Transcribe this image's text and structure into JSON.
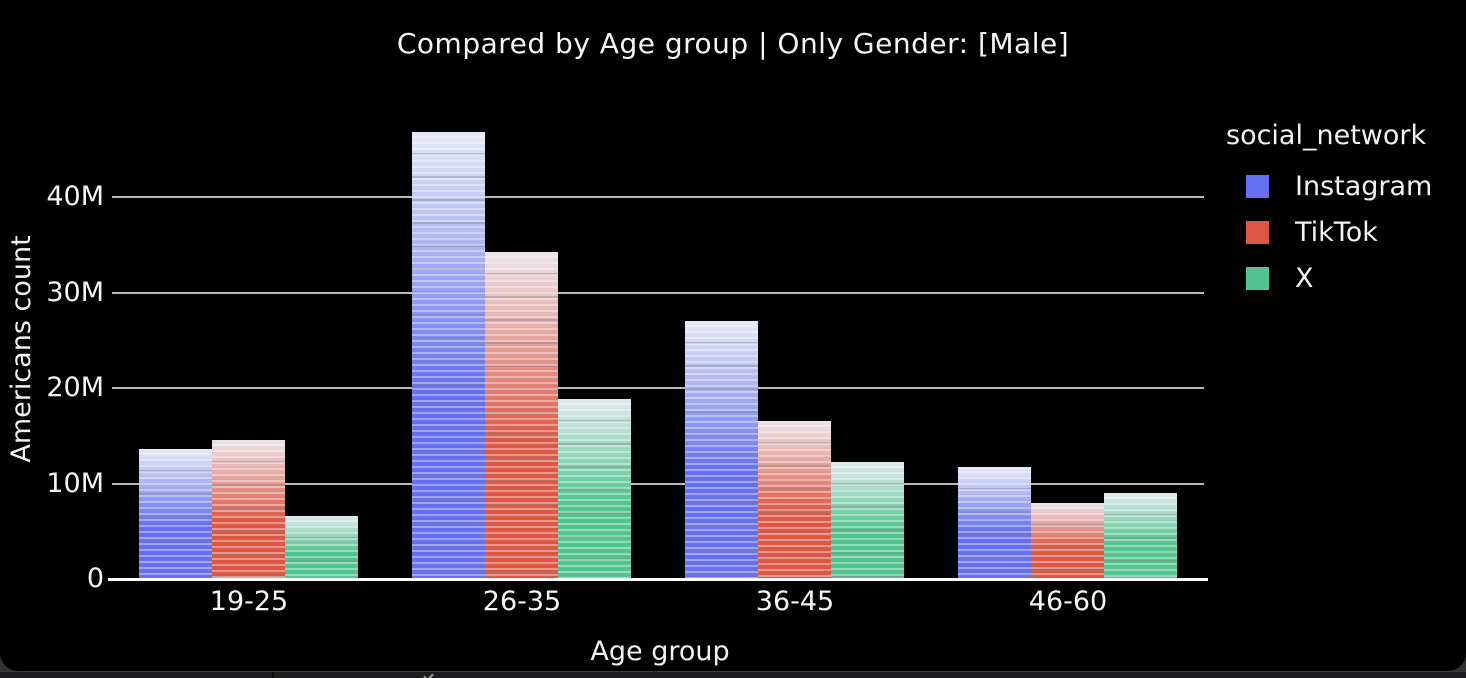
{
  "chart_data": {
    "type": "bar",
    "title": "Compared by Age group | Only Gender: [Male]",
    "xlabel": "Age group",
    "ylabel": "Americans count",
    "legend_title": "social_network",
    "legend_position": "right",
    "grid": true,
    "unit": "M",
    "categories": [
      "19-25",
      "26-35",
      "36-45",
      "46-60"
    ],
    "series": [
      {
        "name": "Instagram",
        "color": "#6470f0",
        "light_color": "#e6e9f5",
        "values": [
          13.6,
          46.8,
          27.0,
          11.7
        ]
      },
      {
        "name": "TikTok",
        "color": "#dc5844",
        "light_color": "#ece4ea",
        "values": [
          14.6,
          34.2,
          16.5,
          8.0
        ]
      },
      {
        "name": "X",
        "color": "#52c491",
        "light_color": "#e0eaee",
        "values": [
          6.6,
          18.9,
          12.2,
          9.0
        ]
      }
    ],
    "ylim": [
      0,
      48
    ],
    "yticks": [
      {
        "value": 0,
        "label": "0"
      },
      {
        "value": 10,
        "label": "10M"
      },
      {
        "value": 20,
        "label": "20M"
      },
      {
        "value": 30,
        "label": "30M"
      },
      {
        "value": 40,
        "label": "40M"
      }
    ],
    "axis_colors": {
      "gridline": "#b9b9b9",
      "baseline": "#ffffff",
      "text": "#f5f5f5"
    }
  }
}
